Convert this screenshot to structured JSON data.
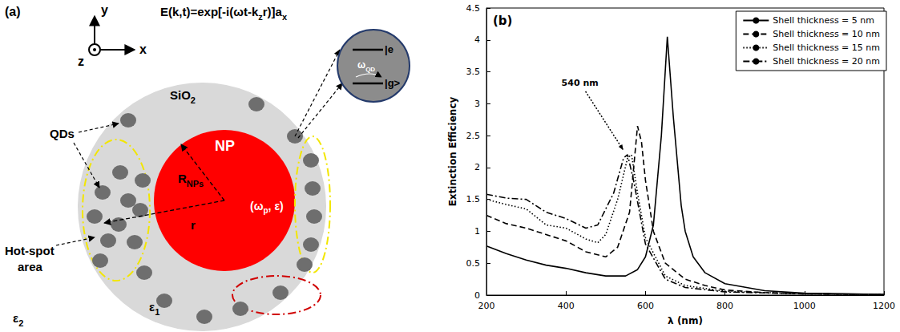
{
  "diagram": {
    "panel_label": "(a)",
    "field": [
      {
        "t": "E(k,t)=exp[-i(ωt-k"
      },
      {
        "t": "z",
        "sub": true
      },
      {
        "t": "r)]a"
      },
      {
        "t": "x",
        "sub": true
      }
    ],
    "axes": {
      "x": "x",
      "y": "y",
      "z": "z"
    },
    "shell": [
      {
        "t": "SiO"
      },
      {
        "t": "2",
        "sub": true
      }
    ],
    "core": "NP",
    "core_params": [
      {
        "t": "(ω"
      },
      {
        "t": "p",
        "sub": true
      },
      {
        "t": ", ε)"
      }
    ],
    "core_radius": [
      {
        "t": "R"
      },
      {
        "t": "NPs",
        "sub": true
      }
    ],
    "radius": "r",
    "shell_permittivity": [
      {
        "t": "ε"
      },
      {
        "t": "1",
        "sub": true
      }
    ],
    "medium_permittivity": [
      {
        "t": "ε"
      },
      {
        "t": "2",
        "sub": true
      }
    ],
    "qd_label": "QDs",
    "hotspot_label": "Hot-spot area",
    "inset": {
      "excited": "|e",
      "ground": "|g>",
      "transition": [
        {
          "t": "ω"
        },
        {
          "t": "QD",
          "sub": true
        }
      ]
    }
  },
  "chart_data": {
    "type": "line",
    "panel_label": "(b)",
    "xlabel": "λ (nm)",
    "ylabel": "Extinction Efficiency",
    "xlim": [
      200,
      1200
    ],
    "xticks": [
      200,
      400,
      600,
      800,
      1000,
      1200
    ],
    "ylim": [
      0,
      4.5
    ],
    "yticks": [
      0,
      0.5,
      1,
      1.5,
      2,
      2.5,
      3,
      3.5,
      4,
      4.5
    ],
    "grid": false,
    "legend": "upper right",
    "marker": "none",
    "series": [
      {
        "name": "Shell thickness = 5 nm",
        "color": "#000000",
        "line_style": "solid",
        "x": [
          200,
          250,
          300,
          350,
          400,
          450,
          500,
          550,
          580,
          600,
          620,
          640,
          655,
          670,
          690,
          700,
          720,
          750,
          800,
          900,
          1000,
          1100,
          1200
        ],
        "values": [
          0.77,
          0.65,
          0.55,
          0.47,
          0.42,
          0.35,
          0.3,
          0.3,
          0.4,
          0.6,
          1.1,
          2.5,
          4.05,
          2.8,
          1.4,
          1.0,
          0.6,
          0.35,
          0.18,
          0.07,
          0.03,
          0.02,
          0.01
        ]
      },
      {
        "name": "Shell thickness = 10 nm",
        "color": "#000000",
        "line_style": "dashed",
        "x": [
          200,
          250,
          300,
          350,
          400,
          450,
          500,
          530,
          560,
          580,
          590,
          600,
          620,
          650,
          700,
          750,
          800,
          900,
          1000,
          1200
        ],
        "values": [
          1.25,
          1.12,
          1.05,
          0.95,
          0.85,
          0.68,
          0.6,
          0.75,
          1.3,
          2.65,
          2.4,
          1.8,
          1.0,
          0.5,
          0.25,
          0.15,
          0.08,
          0.04,
          0.02,
          0.01
        ]
      },
      {
        "name": "Shell thickness = 15 nm",
        "color": "#000000",
        "line_style": "dotted",
        "x": [
          200,
          250,
          300,
          350,
          400,
          450,
          480,
          500,
          530,
          555,
          565,
          580,
          600,
          650,
          700,
          800,
          1000,
          1200
        ],
        "values": [
          1.5,
          1.42,
          1.35,
          1.1,
          1.05,
          0.88,
          0.82,
          0.95,
          1.5,
          2.15,
          2.2,
          1.6,
          0.9,
          0.3,
          0.15,
          0.06,
          0.02,
          0.01
        ]
      },
      {
        "name": "Shell thickness = 20 nm",
        "color": "#000000",
        "line_style": "dashdot",
        "x": [
          200,
          250,
          300,
          350,
          400,
          450,
          480,
          520,
          545,
          555,
          570,
          600,
          650,
          700,
          800,
          1000,
          1200
        ],
        "values": [
          1.58,
          1.52,
          1.5,
          1.3,
          1.2,
          1.05,
          1.1,
          1.6,
          2.15,
          2.2,
          1.8,
          0.8,
          0.25,
          0.12,
          0.05,
          0.02,
          0.01
        ]
      }
    ],
    "annotations": [
      {
        "text": "540 nm",
        "x": 550,
        "y": 2.2
      }
    ]
  }
}
